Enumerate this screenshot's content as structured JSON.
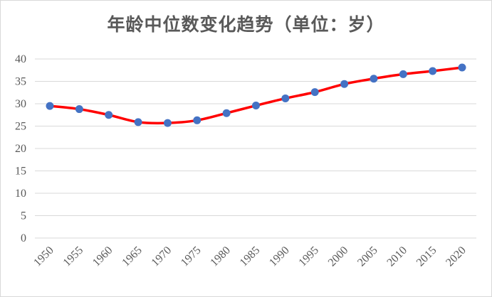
{
  "chart_data": {
    "type": "line",
    "title": "年龄中位数变化趋势（单位：岁）",
    "xlabel": "",
    "ylabel": "",
    "categories": [
      "1950",
      "1955",
      "1960",
      "1965",
      "1970",
      "1975",
      "1980",
      "1985",
      "1990",
      "1995",
      "2000",
      "2005",
      "2010",
      "2015",
      "2020"
    ],
    "series": [
      {
        "values": [
          29.5,
          28.8,
          27.5,
          25.9,
          25.7,
          26.3,
          27.9,
          29.6,
          31.2,
          32.6,
          34.4,
          35.6,
          36.6,
          37.3,
          38.1
        ]
      }
    ],
    "ylim": [
      0,
      40
    ],
    "yticks": [
      0,
      5,
      10,
      15,
      20,
      25,
      30,
      35,
      40
    ],
    "grid": true,
    "smooth": true,
    "line_color": "#ff0000",
    "marker_color": "#4472c4",
    "gridline_color": "#d9d9d9"
  }
}
